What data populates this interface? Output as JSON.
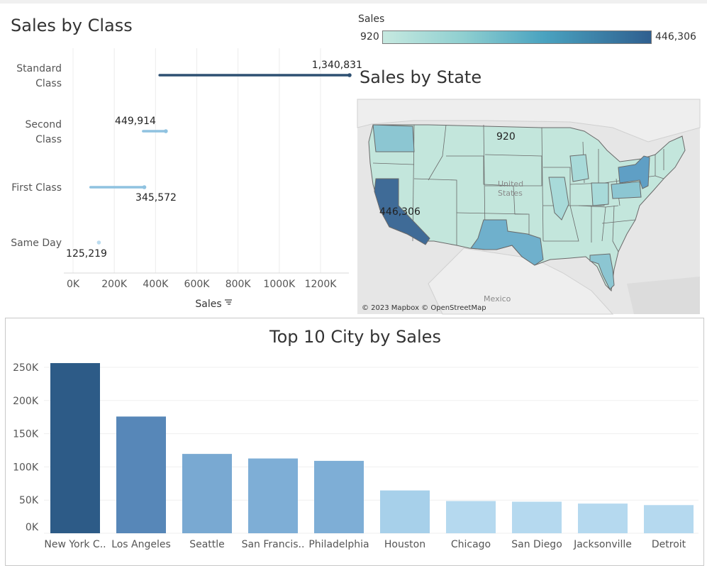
{
  "legend": {
    "title": "Sales",
    "min_label": "920",
    "max_label": "446,306"
  },
  "class_chart": {
    "title": "Sales by Class",
    "axis_title": "Sales",
    "ticks": [
      "0K",
      "200K",
      "400K",
      "600K",
      "800K",
      "1000K",
      "1200K"
    ]
  },
  "map": {
    "title": "Sales by State",
    "credit": "© 2023 Mapbox © OpenStreetMap",
    "label_min": "920",
    "label_max": "446,306",
    "country_us": "United States",
    "country_mexico": "Mexico"
  },
  "city_chart": {
    "title": "Top 10 City by Sales"
  },
  "chart_data": [
    {
      "type": "bar",
      "title": "Sales by Class",
      "orientation": "horizontal",
      "style": "dumbbell",
      "categories": [
        "Standard Class",
        "Second Class",
        "First Class",
        "Same Day"
      ],
      "values": [
        1340831,
        449914,
        345572,
        125219
      ],
      "value_labels": [
        "1,340,831",
        "449,914",
        "345,572",
        "125,219"
      ],
      "xlabel": "Sales",
      "xlim": [
        0,
        1400000
      ],
      "xticks": [
        "0K",
        "200K",
        "400K",
        "600K",
        "800K",
        "1000K",
        "1200K"
      ],
      "colors": [
        "#2e5072",
        "#8fc2e0",
        "#8fc2e0",
        "#bcdcef"
      ]
    },
    {
      "type": "bar",
      "title": "Top 10 City by Sales",
      "categories": [
        "New York C..",
        "Los Angeles",
        "Seattle",
        "San Francis..",
        "Philadelphia",
        "Houston",
        "Chicago",
        "San Diego",
        "Jacksonville",
        "Detroit"
      ],
      "values": [
        256369,
        175851,
        119541,
        112669,
        109077,
        64505,
        48540,
        47521,
        44713,
        42446
      ],
      "ylim": [
        0,
        260000
      ],
      "yticks": [
        "0K",
        "50K",
        "100K",
        "150K",
        "200K",
        "250K"
      ],
      "grid": true,
      "colors": [
        "#2d5b87",
        "#5787b8",
        "#79a9d2",
        "#7eaed6",
        "#7eaed6",
        "#a7d0ea",
        "#b5d9ef",
        "#b5d9ef",
        "#b5d9ef",
        "#b5d9ef"
      ]
    }
  ]
}
